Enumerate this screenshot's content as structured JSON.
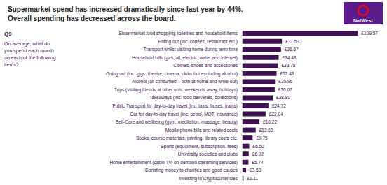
{
  "chart_data": {
    "type": "bar",
    "orientation": "horizontal",
    "title": "Supermarket spend has increased dramatically since last year by 44%.",
    "subtitle": "Overall spending has decreased across the board.",
    "annotations": [
      "Q9",
      "On average, what do\nyou spend each month\non each of the following\nitems?",
      "NatWest"
    ],
    "categories": [
      "Supermarket food shopping, toiletries and household items",
      "Eating out (inc. coffees, restaurant etc.)",
      "Transport whilst visiting home during term time",
      "Household bills (gas, oil, electric, water and internet)",
      "Clothes, shoes and accessories",
      "Going out (inc. gigs, theatre, cinema, clubs but excluding alcohol)",
      "Alcohol (all consumed – both at home and while out)",
      "Trips (visiting friends at other unis, weekends away, holidays)",
      "Takeaways (inc. food deliveries, collections)",
      "Public Transport for day-to-day travel (inc. taxis, buses, trains)",
      "Car for day-to-day travel (inc. petrol, MOT, insurance)",
      "Self-Care and wellbeing (gym, meditation, massage, beauty)",
      "Mobile phone bills and related costs",
      "Books, course materials, printing, library costs etc.",
      "Sports (equipment, subscription, fees)",
      "University societies and clubs",
      "Home entertainment (cable TV, on-demand streaming services)",
      "Donating money to charities and good causes",
      "Investing in Cryptocurrencies"
    ],
    "values": [
      109.57,
      37.53,
      36.67,
      34.48,
      33.78,
      32.48,
      30.96,
      30.67,
      28.8,
      24.72,
      22.04,
      16.22,
      12.62,
      9.75,
      6.52,
      6.02,
      5.74,
      3.53,
      1.11
    ],
    "value_labels": [
      "£109.57",
      "£37.53",
      "£36.67",
      "£34.48",
      "£33.78",
      "£32.48",
      "£30.96",
      "£30.67",
      "£28.80",
      "£24.72",
      "£22.04",
      "£16.22",
      "£12.62",
      "£9.75",
      "£6.52",
      "£6.02",
      "£5.74",
      "£3.53",
      "£1.11"
    ],
    "data_labels": true,
    "color": "#3d1152",
    "xlim": [
      -0.5,
      129.2926
    ],
    "tick_labels": false,
    "grid": false,
    "legend": "none"
  }
}
